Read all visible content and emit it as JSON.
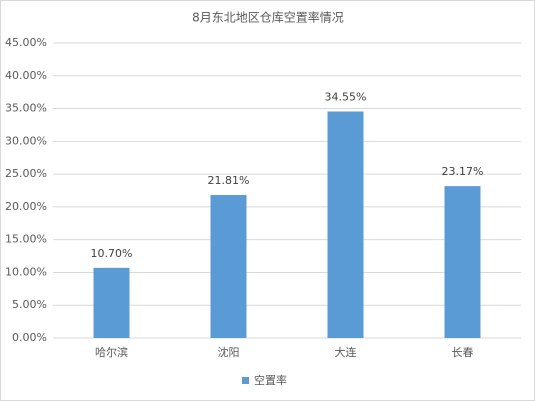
{
  "chart_data": {
    "type": "bar",
    "title": "8月东北地区仓库空置率情况",
    "categories": [
      "哈尔滨",
      "沈阳",
      "大连",
      "长春"
    ],
    "series": [
      {
        "name": "空置率",
        "color": "#5b9bd5",
        "values": [
          10.7,
          21.81,
          34.55,
          23.17
        ],
        "value_labels": [
          "10.70%",
          "21.81%",
          "34.55%",
          "23.17%"
        ]
      }
    ],
    "ylim": [
      0,
      45
    ],
    "yticks": [
      {
        "value": 0,
        "label": "0.00%"
      },
      {
        "value": 5,
        "label": "5.00%"
      },
      {
        "value": 10,
        "label": "10.00%"
      },
      {
        "value": 15,
        "label": "15.00%"
      },
      {
        "value": 20,
        "label": "20.00%"
      },
      {
        "value": 25,
        "label": "25.00%"
      },
      {
        "value": 30,
        "label": "30.00%"
      },
      {
        "value": 35,
        "label": "35.00%"
      },
      {
        "value": 40,
        "label": "40.00%"
      },
      {
        "value": 45,
        "label": "45.00%"
      }
    ],
    "grid": true,
    "legend": "bottom"
  }
}
